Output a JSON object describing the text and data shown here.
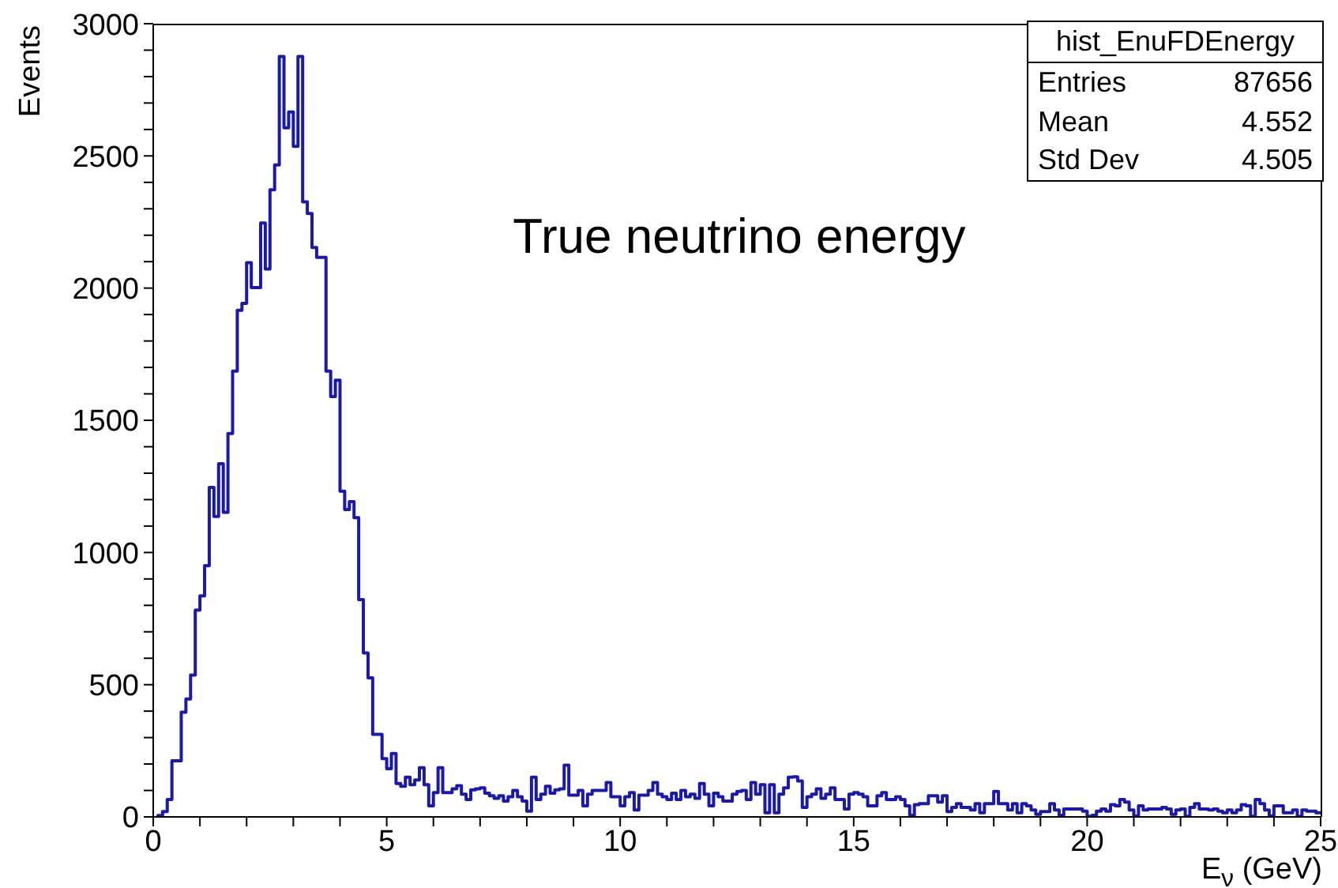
{
  "chart_data": {
    "type": "step",
    "title": "True neutrino energy",
    "xlabel": "E$_{ν}$ (GeV)",
    "ylabel": "Events",
    "color": "#1a1aa6",
    "x": [
      0.1,
      0.2,
      0.3,
      0.4,
      0.5,
      0.6,
      0.7,
      0.8,
      0.9,
      1,
      1.1,
      1.2,
      1.3,
      1.4,
      1.5,
      1.6,
      1.7,
      1.8,
      1.9,
      2,
      2.1,
      2.2,
      2.3,
      2.4,
      2.5,
      2.6,
      2.7,
      2.8,
      2.9,
      3,
      3.1,
      3.2,
      3.3,
      3.4,
      3.5,
      3.6,
      3.7,
      3.8,
      3.9,
      4,
      4.1,
      4.2,
      4.3,
      4.4,
      4.5,
      4.6,
      4.7,
      4.8,
      4.9,
      5,
      5.1,
      5.2,
      5.3,
      5.4,
      5.5,
      5.6,
      5.7,
      5.8,
      5.9,
      6,
      6.1,
      6.2,
      6.3,
      6.4,
      6.5,
      6.6,
      6.7,
      6.8,
      6.9,
      7,
      7.1,
      7.2,
      7.3,
      7.4,
      7.5,
      7.6,
      7.7,
      7.8,
      7.9,
      8,
      8.1,
      8.2,
      8.3,
      8.4,
      8.5,
      8.6,
      8.7,
      8.8,
      8.9,
      9,
      9.1,
      9.2,
      9.3,
      9.4,
      9.5,
      9.6,
      9.7,
      9.8,
      9.9,
      10,
      10.1,
      10.2,
      10.3,
      10.4,
      10.5,
      10.6,
      10.7,
      10.8,
      10.9,
      11,
      11.1,
      11.2,
      11.3,
      11.4,
      11.5,
      11.6,
      11.7,
      11.8,
      11.9,
      12,
      12.1,
      12.2,
      12.3,
      12.4,
      12.5,
      12.6,
      12.7,
      12.8,
      12.9,
      13,
      13.1,
      13.2,
      13.3,
      13.4,
      13.5,
      13.6,
      13.7,
      13.8,
      13.9,
      14,
      14.1,
      14.2,
      14.3,
      14.4,
      14.5,
      14.6,
      14.7,
      14.8,
      14.9,
      15,
      15.1,
      15.2,
      15.3,
      15.4,
      15.5,
      15.6,
      15.7,
      15.8,
      15.9,
      16,
      16.1,
      16.2,
      16.3,
      16.4,
      16.5,
      16.6,
      16.7,
      16.8,
      16.9,
      17,
      17.1,
      17.2,
      17.3,
      17.4,
      17.5,
      17.6,
      17.7,
      17.8,
      17.9,
      18,
      18.1,
      18.2,
      18.3,
      18.4,
      18.5,
      18.6,
      18.7,
      18.8,
      18.9,
      19,
      19.1,
      19.2,
      19.3,
      19.4,
      19.5,
      19.6,
      19.7,
      19.8,
      19.9,
      20,
      20.1,
      20.2,
      20.3,
      20.4,
      20.5,
      20.6,
      20.7,
      20.8,
      20.9,
      21,
      21.1,
      21.2,
      21.3,
      21.4,
      21.5,
      21.6,
      21.7,
      21.8,
      21.9,
      22,
      22.1,
      22.2,
      22.3,
      22.4,
      22.5,
      22.6,
      22.7,
      22.8,
      22.9,
      23,
      23.1,
      23.2,
      23.3,
      23.4,
      23.5,
      23.6,
      23.7,
      23.8,
      23.9,
      24,
      24.1,
      24.2,
      24.3,
      24.4,
      24.5,
      24.6,
      24.7,
      24.8,
      24.9,
      25
    ],
    "values": [
      0,
      5,
      20,
      66,
      212,
      212,
      396,
      446,
      536,
      782,
      836,
      950,
      1246,
      1136,
      1336,
      1152,
      1450,
      1686,
      1916,
      1942,
      2096,
      2002,
      2002,
      2246,
      2072,
      2372,
      2466,
      2876,
      2606,
      2666,
      2536,
      2876,
      2326,
      2282,
      2154,
      2116,
      2116,
      1686,
      1590,
      1652,
      1232,
      1162,
      1192,
      1132,
      822,
      620,
      526,
      312,
      312,
      220,
      182,
      240,
      126,
      116,
      150,
      122,
      140,
      186,
      122,
      42,
      92,
      186,
      92,
      92,
      106,
      118,
      86,
      66,
      102,
      106,
      110,
      90,
      80,
      70,
      80,
      60,
      76,
      100,
      76,
      60,
      22,
      150,
      66,
      86,
      116,
      90,
      102,
      106,
      196,
      82,
      82,
      100,
      42,
      86,
      100,
      100,
      100,
      130,
      76,
      76,
      42,
      76,
      92,
      26,
      82,
      82,
      100,
      130,
      86,
      76,
      66,
      90,
      66,
      100,
      76,
      86,
      70,
      126,
      86,
      42,
      90,
      76,
      60,
      60,
      86,
      96,
      100,
      66,
      130,
      86,
      122,
      16,
      122,
      16,
      86,
      110,
      150,
      152,
      136,
      36,
      76,
      86,
      106,
      70,
      86,
      110,
      66,
      66,
      30,
      86,
      92,
      86,
      76,
      42,
      42,
      80,
      92,
      66,
      66,
      76,
      66,
      42,
      6,
      46,
      50,
      50,
      80,
      80,
      56,
      80,
      20,
      36,
      50,
      36,
      36,
      26,
      50,
      16,
      50,
      50,
      96,
      50,
      50,
      26,
      50,
      16,
      50,
      42,
      26,
      10,
      20,
      20,
      50,
      26,
      6,
      30,
      30,
      30,
      30,
      22,
      2,
      6,
      22,
      30,
      22,
      46,
      42,
      66,
      56,
      26,
      4,
      42,
      26,
      30,
      30,
      30,
      36,
      30,
      10,
      26,
      30,
      2,
      36,
      50,
      30,
      30,
      26,
      30,
      22,
      16,
      26,
      16,
      26,
      46,
      42,
      2,
      66,
      50,
      26,
      4,
      42,
      42,
      16,
      16,
      26,
      2,
      26,
      22,
      22,
      16
    ],
    "xlim": [
      0,
      25
    ],
    "xticks": [
      0,
      {
        "value": 1,
        "label": null
      },
      {
        "value": 2,
        "label": null
      },
      {
        "value": 3,
        "label": null
      },
      {
        "value": 4,
        "label": null
      },
      5,
      {
        "value": 6,
        "label": null
      },
      {
        "value": 7,
        "label": null
      },
      {
        "value": 8,
        "label": null
      },
      {
        "value": 9,
        "label": null
      },
      10,
      {
        "value": 11,
        "label": null
      },
      {
        "value": 12,
        "label": null
      },
      {
        "value": 13,
        "label": null
      },
      {
        "value": 14,
        "label": null
      },
      15,
      {
        "value": 16,
        "label": null
      },
      {
        "value": 17,
        "label": null
      },
      {
        "value": 18,
        "label": null
      },
      {
        "value": 19,
        "label": null
      },
      20,
      {
        "value": 21,
        "label": null
      },
      {
        "value": 22,
        "label": null
      },
      {
        "value": 23,
        "label": null
      },
      {
        "value": 24,
        "label": null
      },
      25
    ],
    "ylim": [
      0,
      3000
    ],
    "yticks": [
      0,
      {
        "value": 100,
        "label": null
      },
      {
        "value": 200,
        "label": null
      },
      {
        "value": 300,
        "label": null
      },
      {
        "value": 400,
        "label": null
      },
      500,
      {
        "value": 600,
        "label": null
      },
      {
        "value": 700,
        "label": null
      },
      {
        "value": 800,
        "label": null
      },
      {
        "value": 900,
        "label": null
      },
      1000,
      {
        "value": 1100,
        "label": null
      },
      {
        "value": 1200,
        "label": null
      },
      {
        "value": 1300,
        "label": null
      },
      {
        "value": 1400,
        "label": null
      },
      1500,
      {
        "value": 1600,
        "label": null
      },
      {
        "value": 1700,
        "label": null
      },
      {
        "value": 1800,
        "label": null
      },
      {
        "value": 1900,
        "label": null
      },
      2000,
      {
        "value": 2100,
        "label": null
      },
      {
        "value": 2200,
        "label": null
      },
      {
        "value": 2300,
        "label": null
      },
      {
        "value": 2400,
        "label": null
      },
      2500,
      {
        "value": 2600,
        "label": null
      },
      {
        "value": 2700,
        "label": null
      },
      {
        "value": 2800,
        "label": null
      },
      {
        "value": 2900,
        "label": null
      },
      3000
    ],
    "annotations": [
      "hist_EnuFDEnergy",
      "Entries",
      "87656",
      "Mean",
      "4.552",
      "Std Dev",
      "4.505"
    ]
  }
}
